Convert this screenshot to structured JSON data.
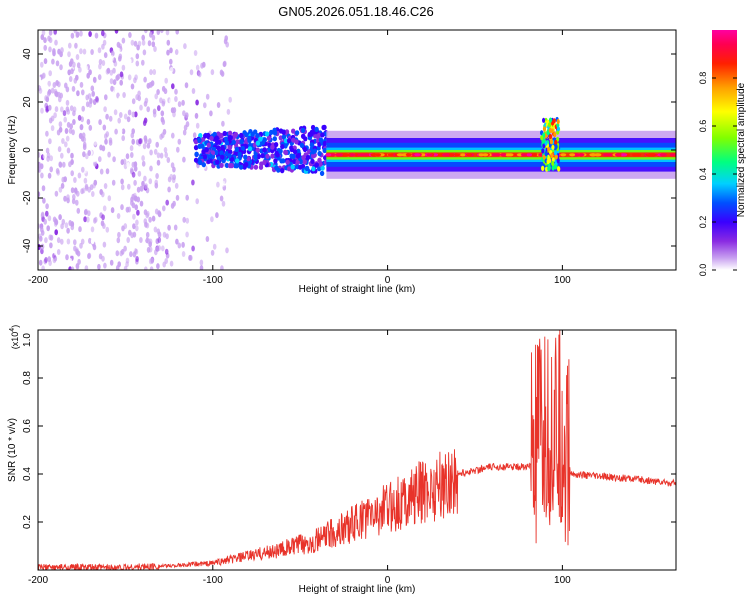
{
  "title": "GN05.2026.051.18.46.C26",
  "chart_data": [
    {
      "type": "heatmap",
      "name": "spectrogram",
      "xlabel": "Height of straight line (km)",
      "ylabel": "Frequency (Hz)",
      "xlim": [
        -200,
        165
      ],
      "ylim": [
        -50,
        50
      ],
      "xticks": [
        -200,
        -100,
        0,
        100
      ],
      "yticks": [
        -40,
        -20,
        0,
        20,
        40
      ],
      "colorbar": {
        "label": "Normalized spectral amplitude",
        "range": [
          0,
          1
        ],
        "ticks": [
          "0.0",
          "0.2",
          "0.4",
          "0.6",
          "0.8"
        ],
        "tick_values": [
          0,
          0.2,
          0.4,
          0.6,
          0.8
        ],
        "colormap": [
          "#ffffff",
          "#c8a0f0",
          "#8a2be2",
          "#3a00ff",
          "#0050ff",
          "#00d0ff",
          "#00ff80",
          "#80ff00",
          "#ffff00",
          "#ffa000",
          "#ff2000",
          "#ff0050",
          "#ff00a0"
        ]
      },
      "regions": [
        {
          "desc": "noise",
          "x": [
            -200,
            -110
          ],
          "freq_spread": 50,
          "amplitude": 0.1
        },
        {
          "desc": "onset",
          "x": [
            -110,
            -35
          ],
          "freq_spread": 10,
          "amplitude": 0.3
        },
        {
          "desc": "tone",
          "x": [
            -35,
            165
          ],
          "freq_center": -2,
          "amplitude": 0.85
        },
        {
          "desc": "spike",
          "x": [
            88,
            98
          ],
          "freq_spread": 16,
          "amplitude": 0.7
        }
      ]
    },
    {
      "type": "line",
      "name": "snr",
      "xlabel": "Height of straight line (km)",
      "ylabel": "SNR (10 * v/v)",
      "scale_label": "(x10",
      "scale_exponent": "4",
      "xlim": [
        -200,
        165
      ],
      "ylim": [
        0,
        1.0
      ],
      "xticks": [
        -200,
        -100,
        0,
        100
      ],
      "yticks": [
        0.2,
        0.4,
        0.6,
        0.8,
        1.0
      ],
      "ytick_labels": [
        "0.2",
        "0.4",
        "0.6",
        "0.8",
        "1.0"
      ],
      "color": "#e8332a",
      "series": [
        {
          "name": "SNR",
          "x": [
            -200,
            -150,
            -120,
            -100,
            -80,
            -60,
            -40,
            -20,
            0,
            20,
            40,
            60,
            80,
            85,
            90,
            95,
            100,
            103,
            105,
            120,
            140,
            165
          ],
          "values": [
            0.01,
            0.01,
            0.02,
            0.03,
            0.06,
            0.09,
            0.13,
            0.2,
            0.27,
            0.34,
            0.4,
            0.43,
            0.43,
            0.45,
            0.5,
            0.55,
            0.5,
            0.45,
            0.4,
            0.39,
            0.38,
            0.36
          ]
        }
      ]
    }
  ]
}
